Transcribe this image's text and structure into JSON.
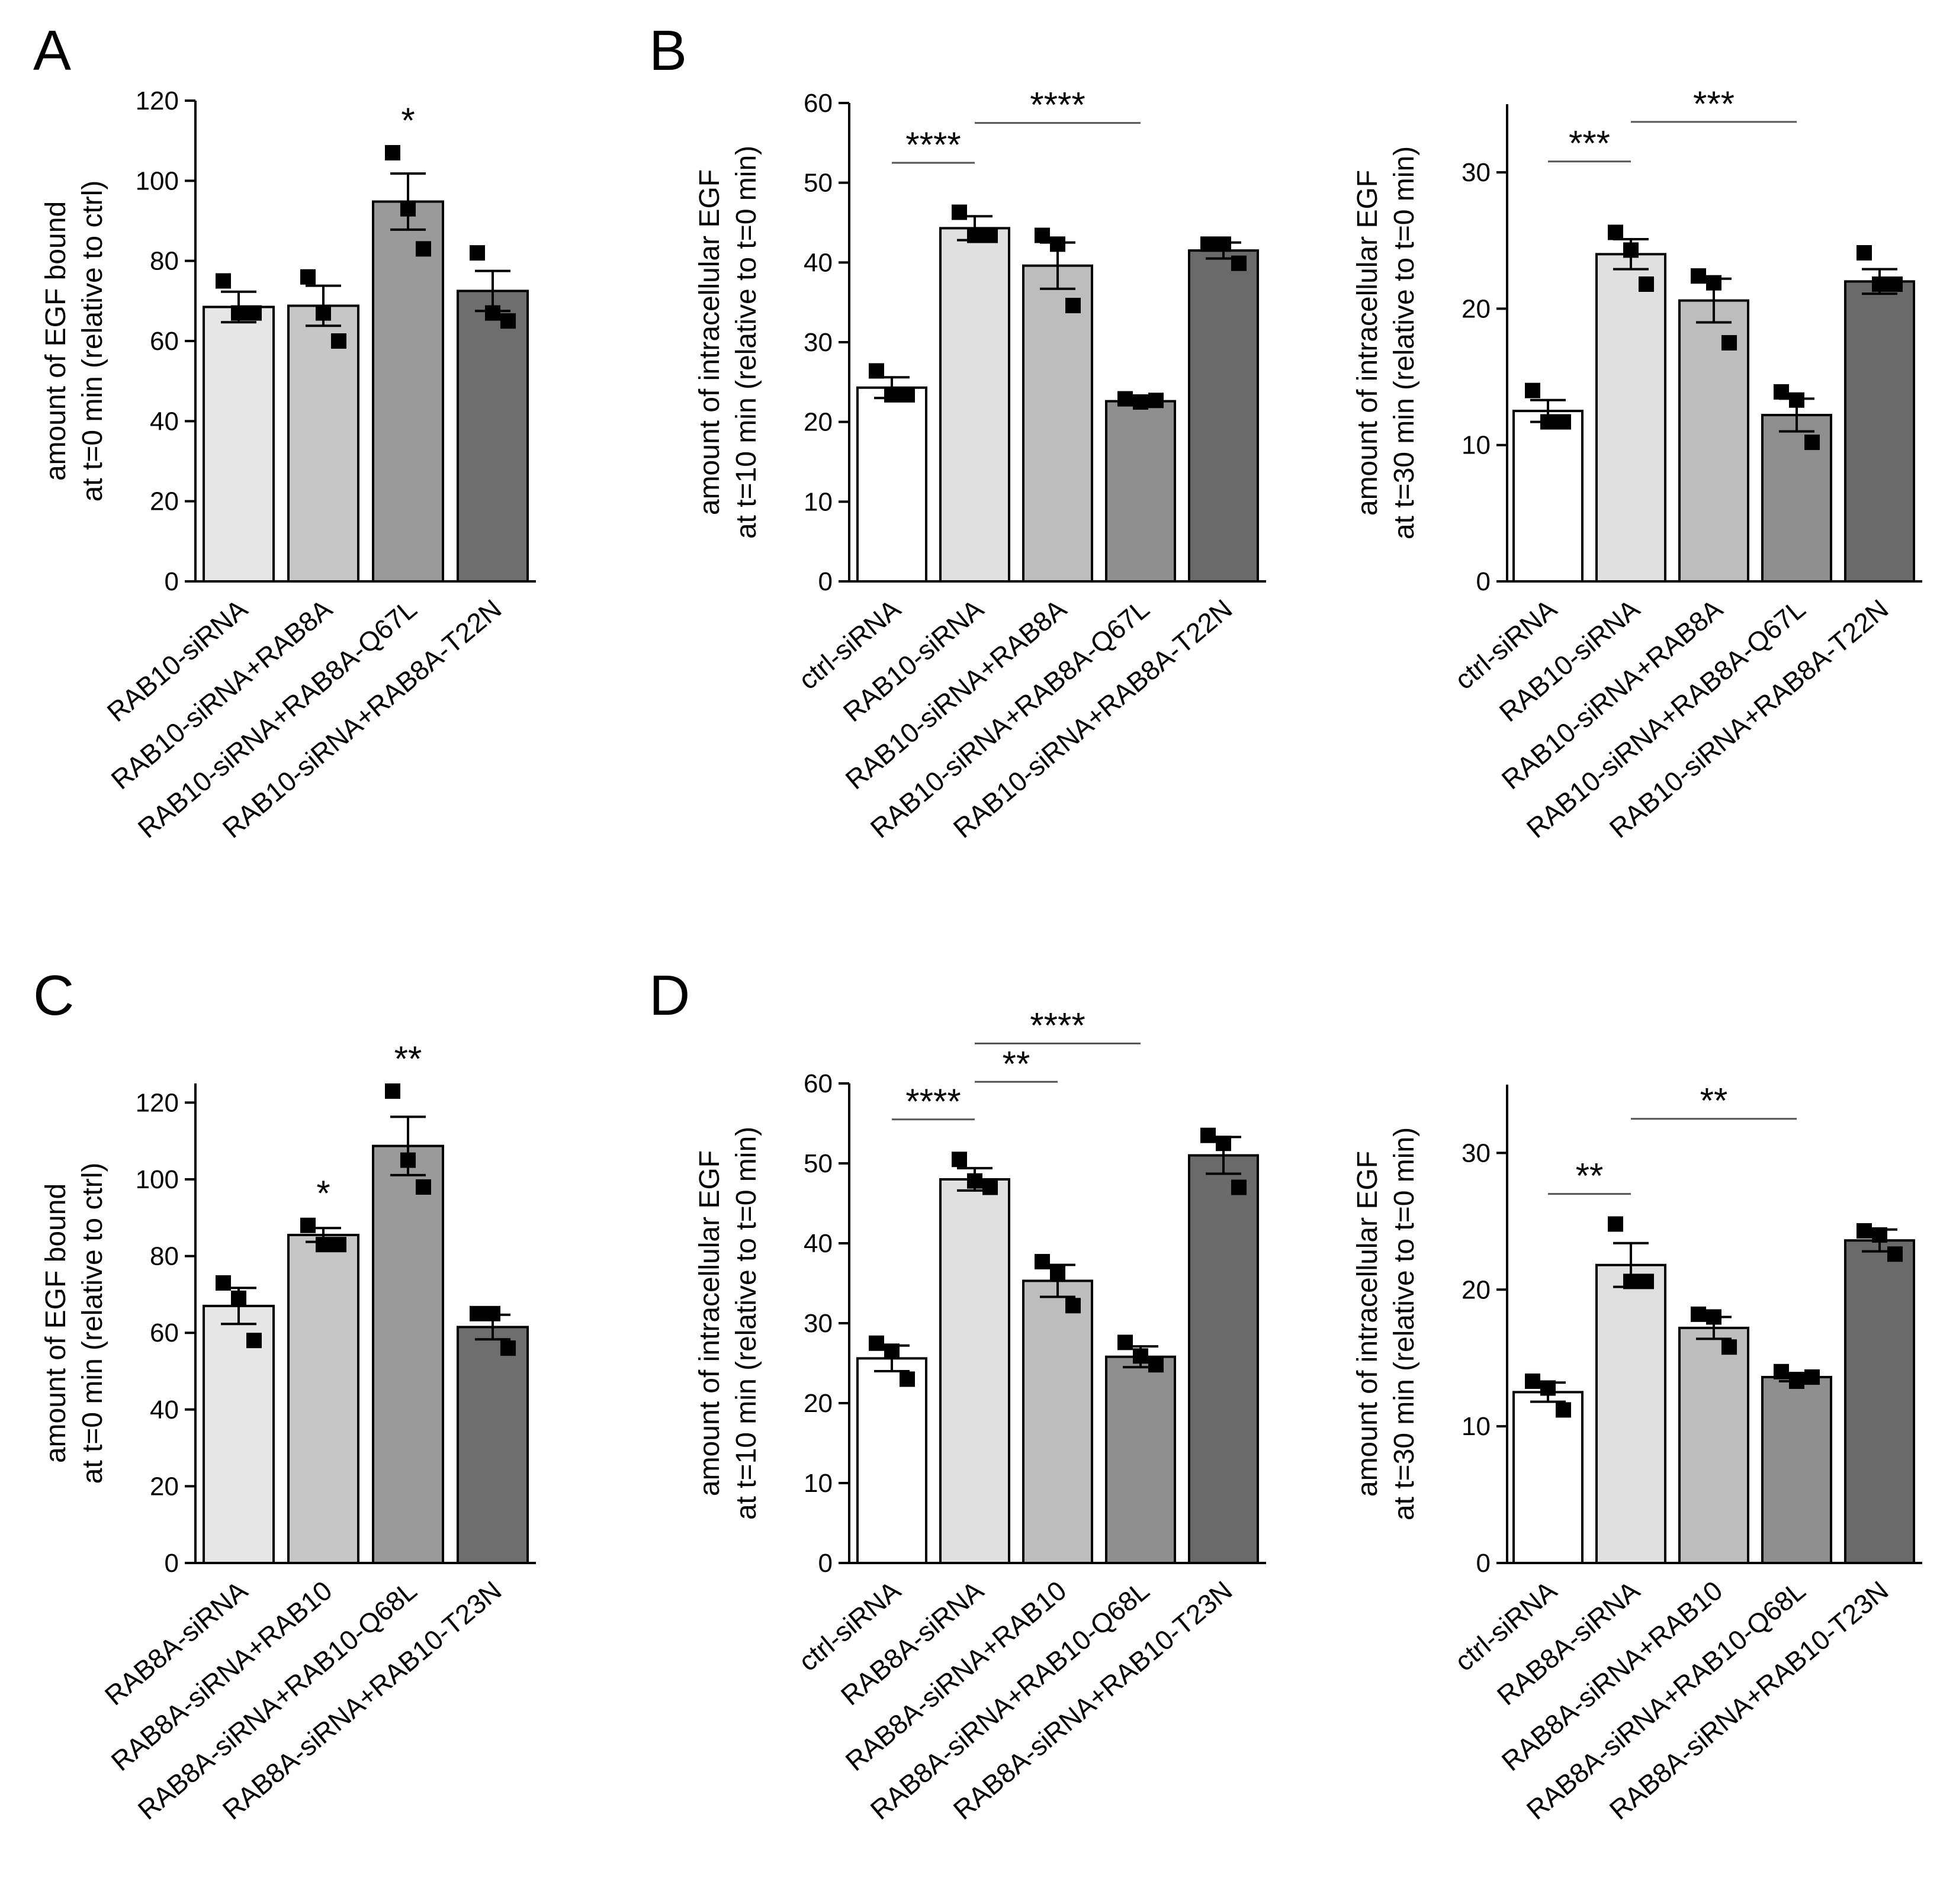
{
  "panel_labels": [
    "A",
    "B",
    "C",
    "D"
  ],
  "chart_data": [
    {
      "id": "A",
      "type": "bar",
      "ylabel": [
        "amount of EGF bound",
        "at t=0 min (relative to ctrl)"
      ],
      "ylim": [
        0,
        120
      ],
      "yticks": [
        0,
        20,
        40,
        60,
        80,
        100,
        120
      ],
      "categories": [
        "RAB10-siRNA",
        "RAB10-siRNA+RAB8A",
        "RAB10-siRNA+RAB8A-Q67L",
        "RAB10-siRNA+RAB8A-T22N"
      ],
      "values": [
        68.5,
        68.8,
        94.8,
        72.5
      ],
      "errors": [
        3.8,
        5.0,
        7.0,
        5.0
      ],
      "points": [
        [
          75,
          67,
          67
        ],
        [
          76,
          67,
          60
        ],
        [
          107,
          93,
          83
        ],
        [
          82,
          67,
          65
        ]
      ],
      "fills": [
        "#e6e6e6",
        "#c6c6c6",
        "#9a9a9a",
        "#6e6e6e"
      ],
      "annotations": [
        {
          "bar": 2,
          "text": "*"
        }
      ],
      "brackets": []
    },
    {
      "id": "B1",
      "type": "bar",
      "ylabel": [
        "amount of intracellular EGF",
        "at t=10 min (relative to t=0 min)"
      ],
      "ylim": [
        0,
        60
      ],
      "yticks": [
        0,
        10,
        20,
        30,
        40,
        50,
        60
      ],
      "categories": [
        "ctrl-siRNA",
        "RAB10-siRNA",
        "RAB10-siRNA+RAB8A",
        "RAB10-siRNA+RAB8A-Q67L",
        "RAB10-siRNA+RAB8A-T22N"
      ],
      "values": [
        24.3,
        44.3,
        39.6,
        22.6,
        41.5
      ],
      "errors": [
        1.3,
        1.5,
        2.9,
        0.3,
        1.0
      ],
      "points": [
        [
          26.4,
          23.4,
          23.4
        ],
        [
          46.3,
          43.4,
          43.4
        ],
        [
          43.4,
          42.3,
          34.6
        ],
        [
          22.9,
          22.5,
          22.7
        ],
        [
          42.3,
          42.3,
          39.9
        ]
      ],
      "fills": [
        "#ffffff",
        "#e0e0e0",
        "#bdbdbd",
        "#8f8f8f",
        "#6a6a6a"
      ],
      "annotations": [],
      "brackets": [
        {
          "from": 0,
          "to": 1,
          "y": 52.5,
          "text": "****"
        },
        {
          "from": 1,
          "to": 3,
          "y": 57.5,
          "text": "****"
        }
      ]
    },
    {
      "id": "B2",
      "type": "bar",
      "ylabel": [
        "amount of intracellular EGF",
        "at t=30 min (relative to t=0 min)"
      ],
      "ylim": [
        0,
        35
      ],
      "yticks": [
        0,
        10,
        20,
        30
      ],
      "categories": [
        "ctrl-siRNA",
        "RAB10-siRNA",
        "RAB10-siRNA+RAB8A",
        "RAB10-siRNA+RAB8A-Q67L",
        "RAB10-siRNA+RAB8A-T22N"
      ],
      "values": [
        12.5,
        24.0,
        20.6,
        12.2,
        22.0
      ],
      "errors": [
        0.8,
        1.1,
        1.6,
        1.2,
        0.9
      ],
      "points": [
        [
          14.0,
          11.7,
          11.7
        ],
        [
          25.6,
          24.3,
          21.8
        ],
        [
          22.4,
          21.9,
          17.5
        ],
        [
          13.9,
          13.3,
          10.2
        ],
        [
          24.1,
          21.8,
          21.8
        ]
      ],
      "fills": [
        "#ffffff",
        "#e0e0e0",
        "#bdbdbd",
        "#8f8f8f",
        "#6a6a6a"
      ],
      "annotations": [],
      "brackets": [
        {
          "from": 0,
          "to": 1,
          "y": 30.8,
          "text": "***"
        },
        {
          "from": 1,
          "to": 3,
          "y": 33.7,
          "text": "***"
        }
      ]
    },
    {
      "id": "C",
      "type": "bar",
      "ylabel": [
        "amount of EGF bound",
        "at t=0 min (relative to ctrl)"
      ],
      "ylim": [
        0,
        125
      ],
      "yticks": [
        0,
        20,
        40,
        60,
        80,
        100,
        120
      ],
      "categories": [
        "RAB8A-siRNA",
        "RAB8A-siRNA+RAB10",
        "RAB8A-siRNA+RAB10-Q68L",
        "RAB8A-siRNA+RAB10-T23N"
      ],
      "values": [
        67.0,
        85.5,
        108.7,
        61.5
      ],
      "errors": [
        4.7,
        1.8,
        7.6,
        3.2
      ],
      "points": [
        [
          73,
          69,
          58
        ],
        [
          88,
          83,
          83
        ],
        [
          123,
          105,
          98
        ],
        [
          65,
          65,
          56
        ]
      ],
      "fills": [
        "#e6e6e6",
        "#c6c6c6",
        "#9a9a9a",
        "#6e6e6e"
      ],
      "annotations": [
        {
          "bar": 1,
          "text": "*"
        },
        {
          "bar": 2,
          "text": "**"
        }
      ],
      "brackets": []
    },
    {
      "id": "D1",
      "type": "bar",
      "ylabel": [
        "amount of intracellular EGF",
        "at t=10 min (relative to t=0 min)"
      ],
      "ylim": [
        0,
        60
      ],
      "yticks": [
        0,
        10,
        20,
        30,
        40,
        50,
        60
      ],
      "categories": [
        "ctrl-siRNA",
        "RAB8A-siRNA",
        "RAB8A-siRNA+RAB10",
        "RAB8A-siRNA+RAB10-Q68L",
        "RAB8A-siRNA+RAB10-T23N"
      ],
      "values": [
        25.6,
        48.0,
        35.3,
        25.8,
        51.0
      ],
      "errors": [
        1.6,
        1.4,
        2.0,
        1.3,
        2.3
      ],
      "points": [
        [
          27.5,
          26.5,
          23.0
        ],
        [
          50.5,
          47.8,
          47.0
        ],
        [
          37.7,
          36.2,
          32.2
        ],
        [
          27.6,
          25.9,
          24.8
        ],
        [
          53.5,
          52.5,
          47.0
        ]
      ],
      "fills": [
        "#ffffff",
        "#e0e0e0",
        "#bdbdbd",
        "#8f8f8f",
        "#6a6a6a"
      ],
      "annotations": [],
      "brackets": [
        {
          "from": 0,
          "to": 1,
          "y": 55.5,
          "text": "****"
        },
        {
          "from": 1,
          "to": 2,
          "y": 60.2,
          "text": "**"
        },
        {
          "from": 1,
          "to": 3,
          "y": 65.0,
          "text": "****"
        }
      ]
    },
    {
      "id": "D2",
      "type": "bar",
      "ylabel": [
        "amount of intracellular EGF",
        "at t=30 min (relative to t=0 min)"
      ],
      "ylim": [
        0,
        35
      ],
      "yticks": [
        0,
        10,
        20,
        30
      ],
      "categories": [
        "ctrl-siRNA",
        "RAB8A-siRNA",
        "RAB8A-siRNA+RAB10",
        "RAB8A-siRNA+RAB10-Q68L",
        "RAB8A-siRNA+RAB10-T23N"
      ],
      "values": [
        12.5,
        21.8,
        17.2,
        13.6,
        23.6
      ],
      "errors": [
        0.7,
        1.6,
        0.8,
        0.3,
        0.8
      ],
      "points": [
        [
          13.3,
          12.8,
          11.2
        ],
        [
          24.8,
          20.6,
          20.6
        ],
        [
          18.2,
          18.0,
          15.8
        ],
        [
          14.0,
          13.3,
          13.6
        ],
        [
          24.3,
          24.0,
          22.6
        ]
      ],
      "fills": [
        "#ffffff",
        "#e0e0e0",
        "#bdbdbd",
        "#8f8f8f",
        "#6a6a6a"
      ],
      "annotations": [],
      "brackets": [
        {
          "from": 0,
          "to": 1,
          "y": 27.0,
          "text": "**"
        },
        {
          "from": 1,
          "to": 3,
          "y": 32.5,
          "text": "**"
        }
      ]
    }
  ]
}
